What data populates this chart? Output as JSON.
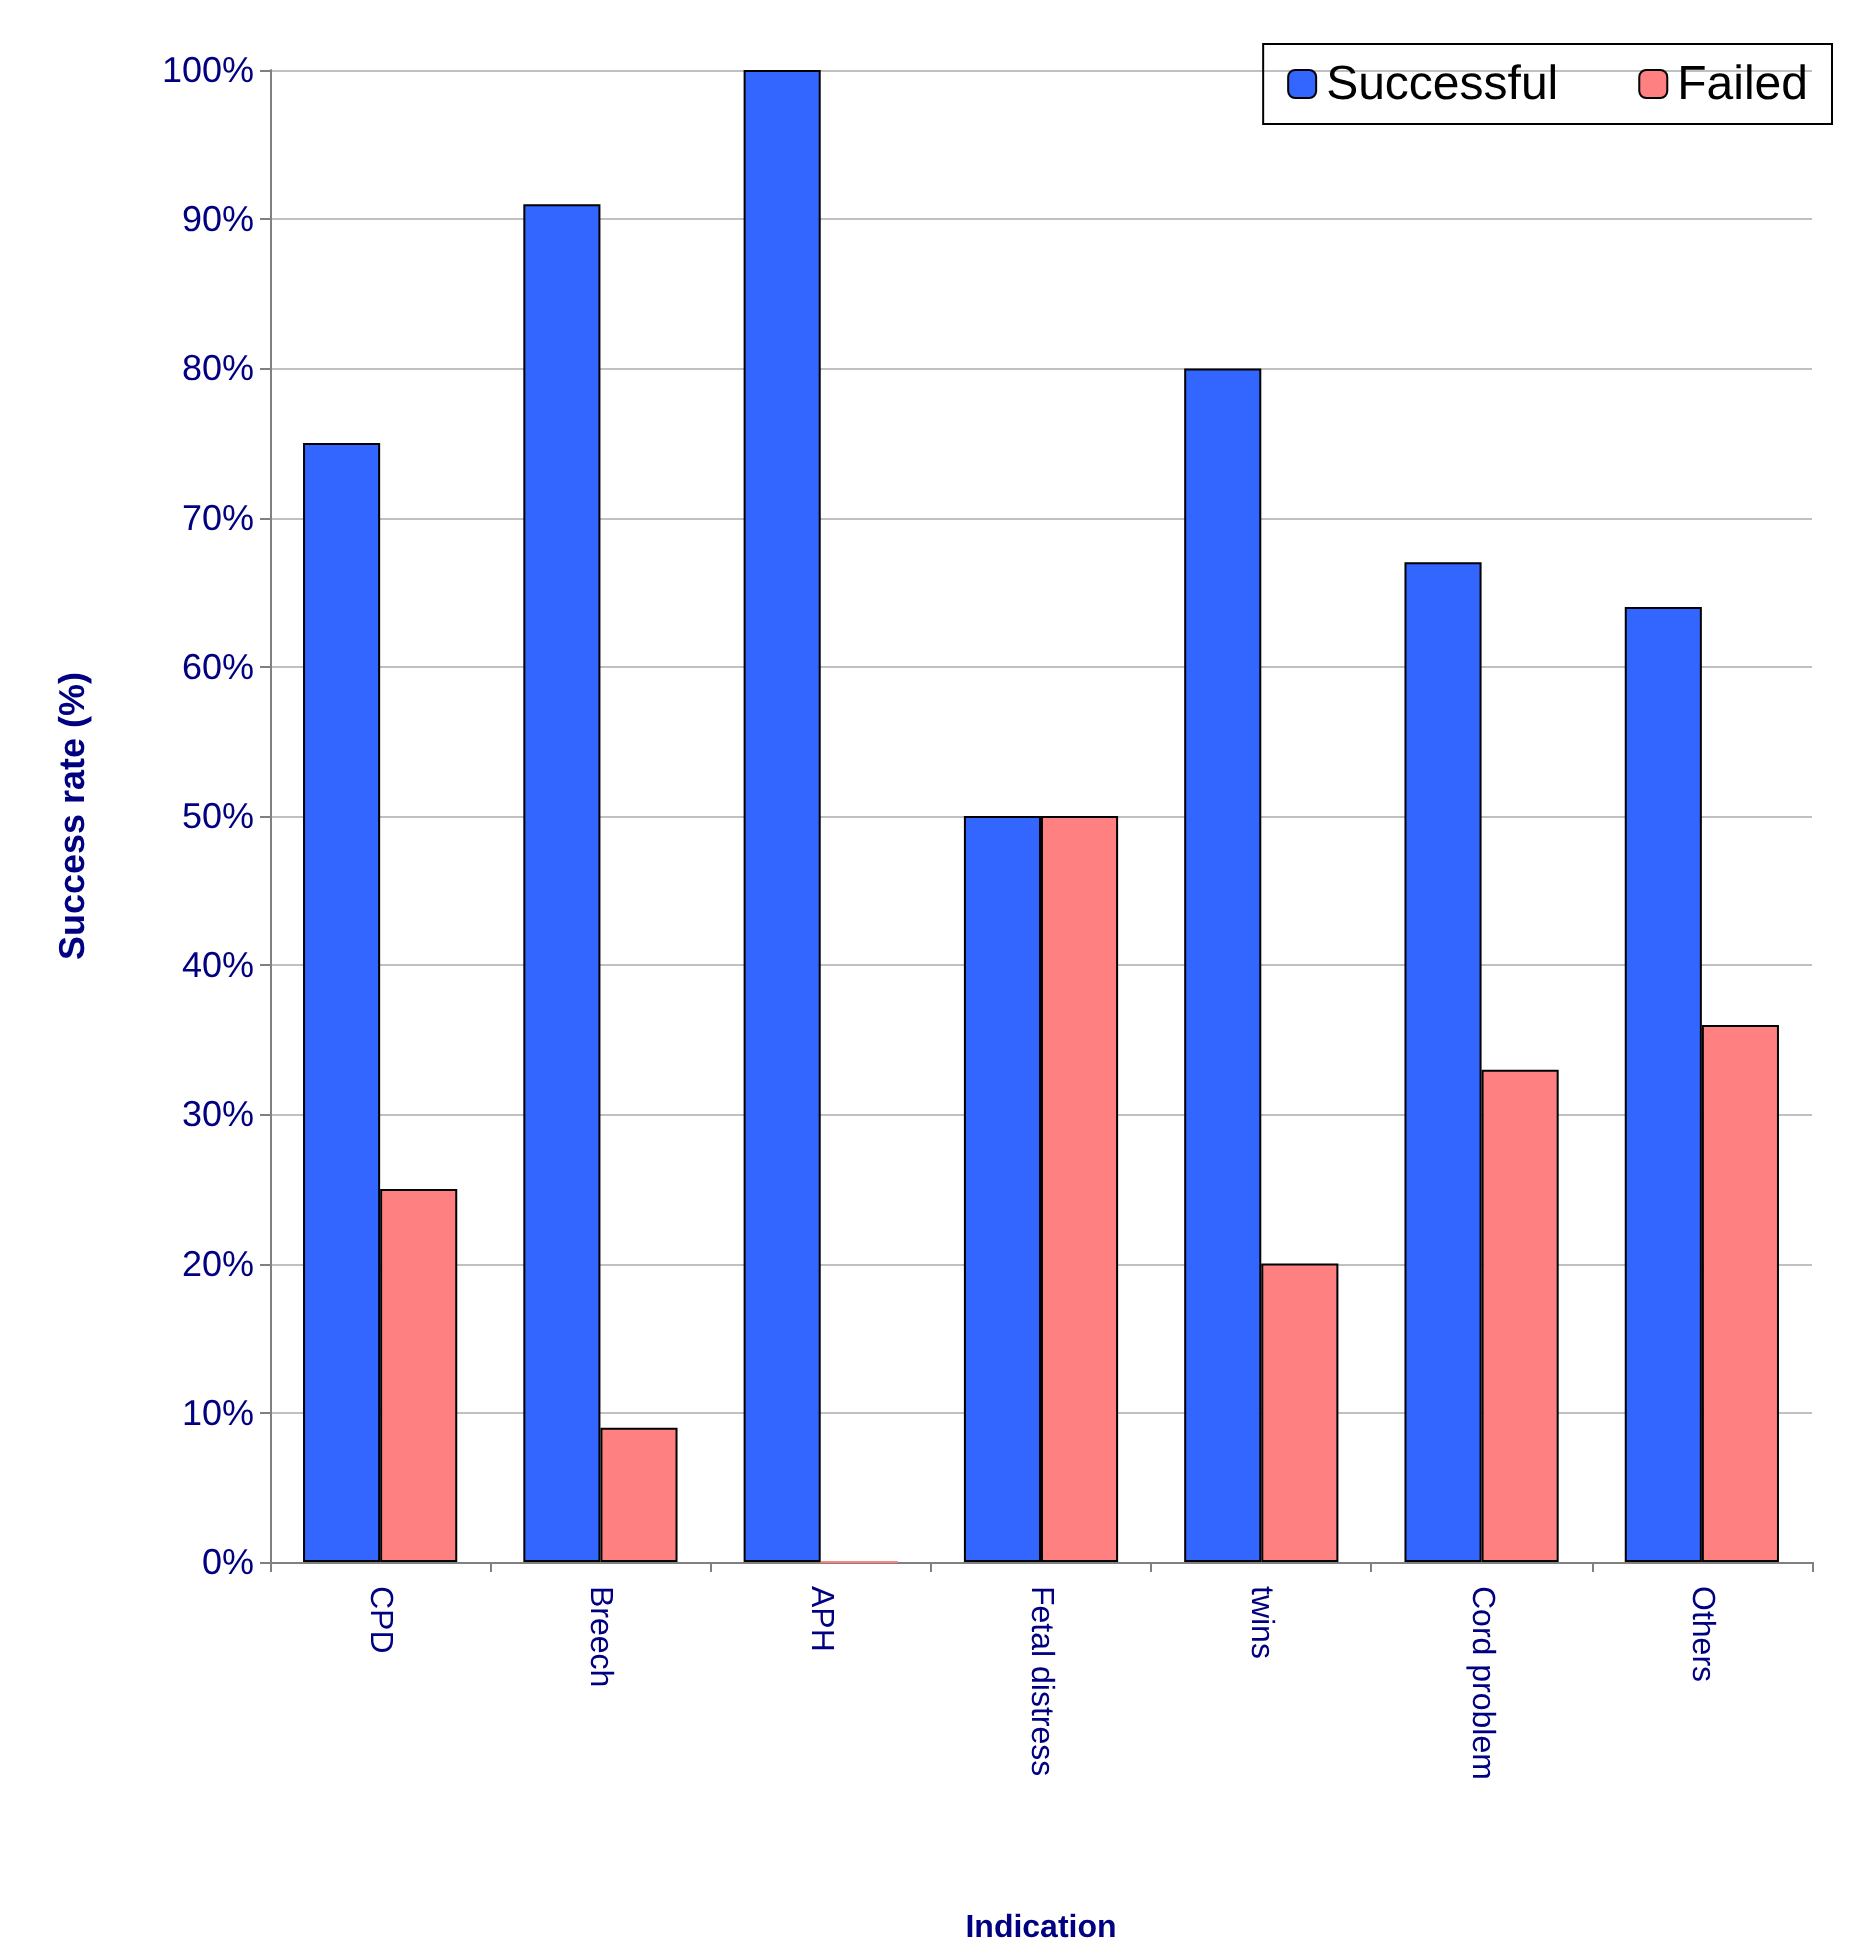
{
  "chart_data": {
    "type": "bar",
    "xlabel": "Indication",
    "ylabel": "Success rate (%)",
    "categories": [
      "CPD",
      "Breech",
      "APH",
      "Fetal distress",
      "twins",
      "Cord problem",
      "Others"
    ],
    "series": [
      {
        "name": "Successful",
        "color": "#3366ff",
        "values": [
          75,
          91,
          100,
          50,
          80,
          67,
          64
        ]
      },
      {
        "name": "Failed",
        "color": "#ff8080",
        "values": [
          25,
          9,
          0,
          50,
          20,
          33,
          36
        ]
      }
    ],
    "ylim": [
      0,
      100
    ],
    "yticks": [
      {
        "value": 0,
        "label": "0%"
      },
      {
        "value": 10,
        "label": "10%"
      },
      {
        "value": 20,
        "label": "20%"
      },
      {
        "value": 30,
        "label": "30%"
      },
      {
        "value": 40,
        "label": "40%"
      },
      {
        "value": 50,
        "label": "50%"
      },
      {
        "value": 60,
        "label": "60%"
      },
      {
        "value": 70,
        "label": "70%"
      },
      {
        "value": 80,
        "label": "80%"
      },
      {
        "value": 90,
        "label": "90%"
      },
      {
        "value": 100,
        "label": "100%"
      }
    ],
    "grid": "y",
    "legend": "top right"
  }
}
